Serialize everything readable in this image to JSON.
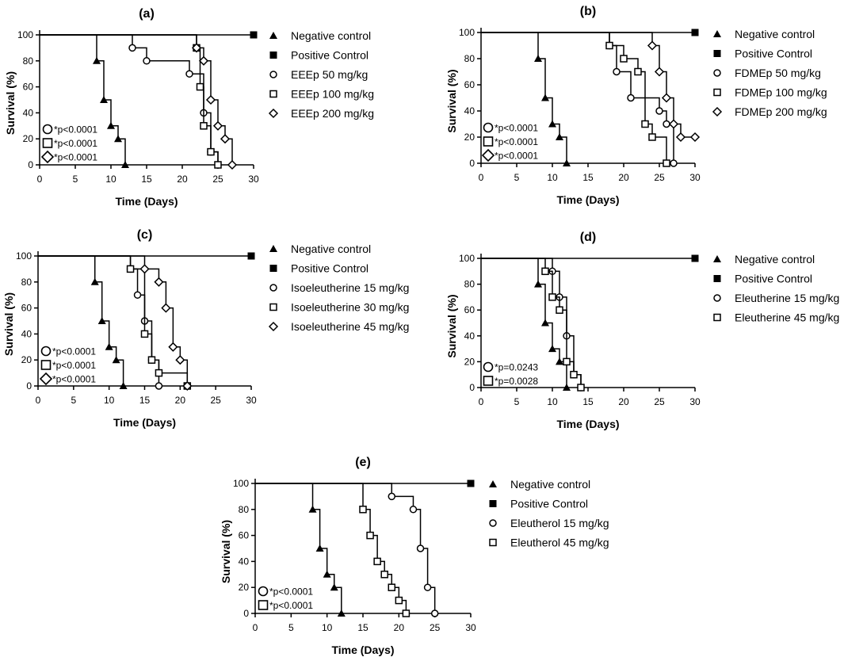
{
  "figure": {
    "title": ""
  },
  "chart_data": [
    {
      "type": "line",
      "panel": "(a)",
      "xlabel": "Time (Days)",
      "ylabel": "Survival (%)",
      "xlim": [
        0,
        30
      ],
      "ylim": [
        0,
        100
      ],
      "xticks": [
        0,
        5,
        10,
        15,
        20,
        25,
        30
      ],
      "yticks": [
        0,
        20,
        40,
        60,
        80,
        100
      ],
      "legend_position": "right",
      "series": [
        {
          "name": "Negative control",
          "marker": "triangle",
          "x": [
            0,
            8,
            9,
            10,
            11,
            12
          ],
          "y": [
            100,
            80,
            50,
            30,
            20,
            0
          ]
        },
        {
          "name": "Positive Control",
          "marker": "square-filled",
          "x": [
            0,
            30
          ],
          "y": [
            100,
            100
          ]
        },
        {
          "name": "EEEp 50 mg/kg",
          "marker": "circle",
          "x": [
            0,
            13,
            15,
            21,
            23,
            24,
            25
          ],
          "y": [
            100,
            90,
            80,
            70,
            40,
            10,
            0
          ]
        },
        {
          "name": "EEEp 100 mg/kg",
          "marker": "square",
          "x": [
            0,
            22,
            22.5,
            23,
            24,
            25
          ],
          "y": [
            100,
            90,
            60,
            30,
            10,
            0
          ]
        },
        {
          "name": "EEEp 200 mg/kg",
          "marker": "diamond",
          "x": [
            0,
            22,
            23,
            24,
            25,
            26,
            27
          ],
          "y": [
            100,
            90,
            80,
            50,
            30,
            20,
            0
          ]
        }
      ],
      "pvalues": [
        {
          "marker": "circle",
          "text": "*p<0.0001"
        },
        {
          "marker": "square",
          "text": "*p<0.0001"
        },
        {
          "marker": "diamond",
          "text": "*p<0.0001"
        }
      ]
    },
    {
      "type": "line",
      "panel": "(b)",
      "xlabel": "Time (Days)",
      "ylabel": "Survival (%)",
      "xlim": [
        0,
        30
      ],
      "ylim": [
        0,
        100
      ],
      "xticks": [
        0,
        5,
        10,
        15,
        20,
        25,
        30
      ],
      "yticks": [
        0,
        20,
        40,
        60,
        80,
        100
      ],
      "legend_position": "right",
      "series": [
        {
          "name": "Negative control",
          "marker": "triangle",
          "x": [
            0,
            8,
            9,
            10,
            11,
            12
          ],
          "y": [
            100,
            80,
            50,
            30,
            20,
            0
          ]
        },
        {
          "name": "Positive Control",
          "marker": "square-filled",
          "x": [
            0,
            30
          ],
          "y": [
            100,
            100
          ]
        },
        {
          "name": "FDMEp 50 mg/kg",
          "marker": "circle",
          "x": [
            0,
            18,
            19,
            21,
            25,
            26,
            27
          ],
          "y": [
            100,
            90,
            70,
            50,
            40,
            30,
            0
          ]
        },
        {
          "name": "FDMEp 100 mg/kg",
          "marker": "square",
          "x": [
            0,
            18,
            20,
            22,
            23,
            24,
            26
          ],
          "y": [
            100,
            90,
            80,
            70,
            30,
            20,
            0
          ]
        },
        {
          "name": "FDMEp 200 mg/kg",
          "marker": "diamond",
          "x": [
            0,
            24,
            25,
            26,
            27,
            28,
            30
          ],
          "y": [
            100,
            90,
            70,
            50,
            30,
            20,
            20
          ]
        }
      ],
      "pvalues": [
        {
          "marker": "circle",
          "text": "*p<0.0001"
        },
        {
          "marker": "square",
          "text": "*p<0.0001"
        },
        {
          "marker": "diamond",
          "text": "*p<0.0001"
        }
      ]
    },
    {
      "type": "line",
      "panel": "(c)",
      "xlabel": "Time (Days)",
      "ylabel": "Survival (%)",
      "xlim": [
        0,
        30
      ],
      "ylim": [
        0,
        100
      ],
      "xticks": [
        0,
        5,
        10,
        15,
        20,
        25,
        30
      ],
      "yticks": [
        0,
        20,
        40,
        60,
        80,
        100
      ],
      "legend_position": "right",
      "series": [
        {
          "name": "Negative control",
          "marker": "triangle",
          "x": [
            0,
            8,
            9,
            10,
            11,
            12
          ],
          "y": [
            100,
            80,
            50,
            30,
            20,
            0
          ]
        },
        {
          "name": "Positive Control",
          "marker": "square-filled",
          "x": [
            0,
            30
          ],
          "y": [
            100,
            100
          ]
        },
        {
          "name": "Isoeleutherine 15 mg/kg",
          "marker": "circle",
          "x": [
            0,
            13,
            14,
            15,
            16,
            17
          ],
          "y": [
            100,
            90,
            70,
            50,
            20,
            0
          ]
        },
        {
          "name": "Isoeleutherine 30 mg/kg",
          "marker": "square",
          "x": [
            0,
            13,
            15,
            16,
            17,
            21
          ],
          "y": [
            100,
            90,
            40,
            20,
            10,
            0
          ]
        },
        {
          "name": "Isoeleutherine 45 mg/kg",
          "marker": "diamond",
          "x": [
            0,
            15,
            17,
            18,
            19,
            20,
            21
          ],
          "y": [
            100,
            90,
            80,
            60,
            30,
            20,
            0
          ]
        }
      ],
      "pvalues": [
        {
          "marker": "circle",
          "text": "*p<0.0001"
        },
        {
          "marker": "square",
          "text": "*p<0.0001"
        },
        {
          "marker": "diamond",
          "text": "*p<0.0001"
        }
      ]
    },
    {
      "type": "line",
      "panel": "(d)",
      "xlabel": "Time (Days)",
      "ylabel": "Survival (%)",
      "xlim": [
        0,
        30
      ],
      "ylim": [
        0,
        100
      ],
      "xticks": [
        0,
        5,
        10,
        15,
        20,
        25,
        30
      ],
      "yticks": [
        0,
        20,
        40,
        60,
        80,
        100
      ],
      "legend_position": "right",
      "series": [
        {
          "name": "Negative control",
          "marker": "triangle",
          "x": [
            0,
            8,
            9,
            10,
            11,
            12
          ],
          "y": [
            100,
            80,
            50,
            30,
            20,
            0
          ]
        },
        {
          "name": "Positive Control",
          "marker": "square-filled",
          "x": [
            0,
            30
          ],
          "y": [
            100,
            100
          ]
        },
        {
          "name": "Eleutherine 15 mg/kg",
          "marker": "circle",
          "x": [
            0,
            10,
            11,
            12,
            13,
            14
          ],
          "y": [
            100,
            90,
            70,
            40,
            10,
            0
          ]
        },
        {
          "name": "Eleutherine 45 mg/kg",
          "marker": "square",
          "x": [
            0,
            9,
            10,
            11,
            12,
            13,
            14
          ],
          "y": [
            100,
            90,
            70,
            60,
            20,
            10,
            0
          ]
        }
      ],
      "pvalues": [
        {
          "marker": "circle",
          "text": "*p=0.0243"
        },
        {
          "marker": "square",
          "text": "*p=0.0028"
        }
      ]
    },
    {
      "type": "line",
      "panel": "(e)",
      "xlabel": "Time (Days)",
      "ylabel": "Survival (%)",
      "xlim": [
        0,
        30
      ],
      "ylim": [
        0,
        100
      ],
      "xticks": [
        0,
        5,
        10,
        15,
        20,
        25,
        30
      ],
      "yticks": [
        0,
        20,
        40,
        60,
        80,
        100
      ],
      "legend_position": "right",
      "series": [
        {
          "name": "Negative control",
          "marker": "triangle",
          "x": [
            0,
            8,
            9,
            10,
            11,
            12
          ],
          "y": [
            100,
            80,
            50,
            30,
            20,
            0
          ]
        },
        {
          "name": "Positive Control",
          "marker": "square-filled",
          "x": [
            0,
            30
          ],
          "y": [
            100,
            100
          ]
        },
        {
          "name": "Eleutherol 15 mg/kg",
          "marker": "circle",
          "x": [
            0,
            19,
            22,
            23,
            24,
            25
          ],
          "y": [
            100,
            90,
            80,
            50,
            20,
            0
          ]
        },
        {
          "name": "Eleutherol 45 mg/kg",
          "marker": "square",
          "x": [
            0,
            15,
            16,
            17,
            18,
            19,
            20,
            21
          ],
          "y": [
            100,
            80,
            60,
            40,
            30,
            20,
            10,
            0
          ]
        }
      ],
      "pvalues": [
        {
          "marker": "circle",
          "text": "*p<0.0001"
        },
        {
          "marker": "square",
          "text": "*p<0.0001"
        }
      ]
    }
  ]
}
